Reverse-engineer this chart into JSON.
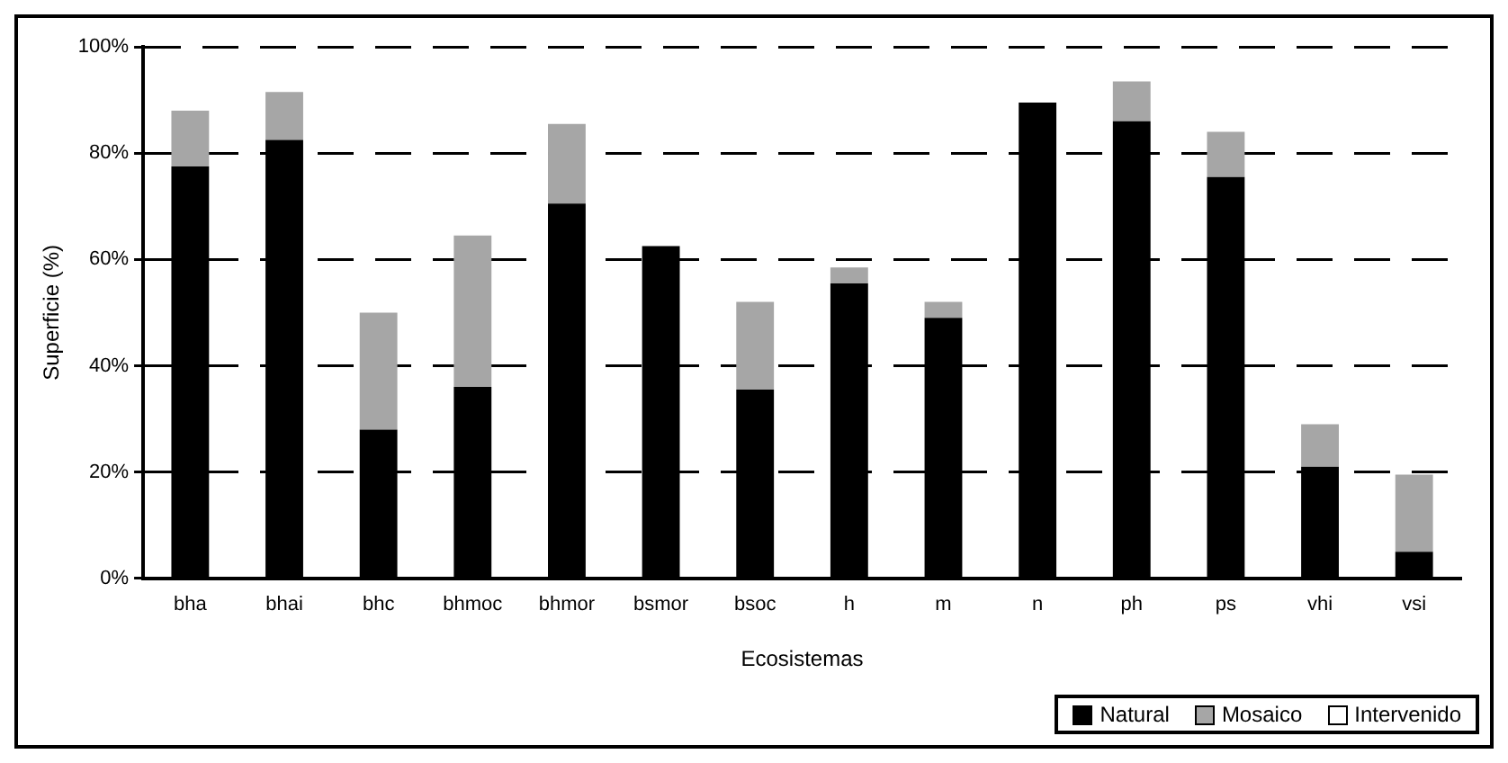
{
  "chart_data": {
    "type": "bar",
    "stacked": true,
    "xlabel": "Ecosistemas",
    "ylabel": "Superficie (%)",
    "categories": [
      "bha",
      "bhai",
      "bhc",
      "bhmoc",
      "bhmor",
      "bsmor",
      "bsoc",
      "h",
      "m",
      "n",
      "ph",
      "ps",
      "vhi",
      "vsi"
    ],
    "series": [
      {
        "name": "Natural",
        "color": "#000000",
        "values": [
          77.5,
          82.5,
          28,
          36,
          70.5,
          62.5,
          35.5,
          55.5,
          49,
          89.5,
          86,
          75.5,
          21,
          5
        ]
      },
      {
        "name": "Mosaico",
        "color": "#a6a6a6",
        "values": [
          10.5,
          9,
          22,
          28.5,
          15,
          null,
          16.5,
          3,
          3,
          null,
          7.5,
          8.5,
          8,
          14.5
        ]
      },
      {
        "name": "Intervenido",
        "color": "#ffffff",
        "values": [
          null,
          null,
          null,
          null,
          null,
          null,
          null,
          null,
          null,
          null,
          null,
          null,
          null,
          null
        ]
      }
    ],
    "ylim": [
      0,
      100
    ],
    "yticks": [
      {
        "value": 0,
        "label": "0%"
      },
      {
        "value": 20,
        "label": "20%"
      },
      {
        "value": 40,
        "label": "40%"
      },
      {
        "value": 60,
        "label": "60%"
      },
      {
        "value": 80,
        "label": "80%"
      },
      {
        "value": 100,
        "label": "100%"
      }
    ],
    "grid": "y",
    "line_style": "dashed",
    "legend": "bottom right"
  }
}
